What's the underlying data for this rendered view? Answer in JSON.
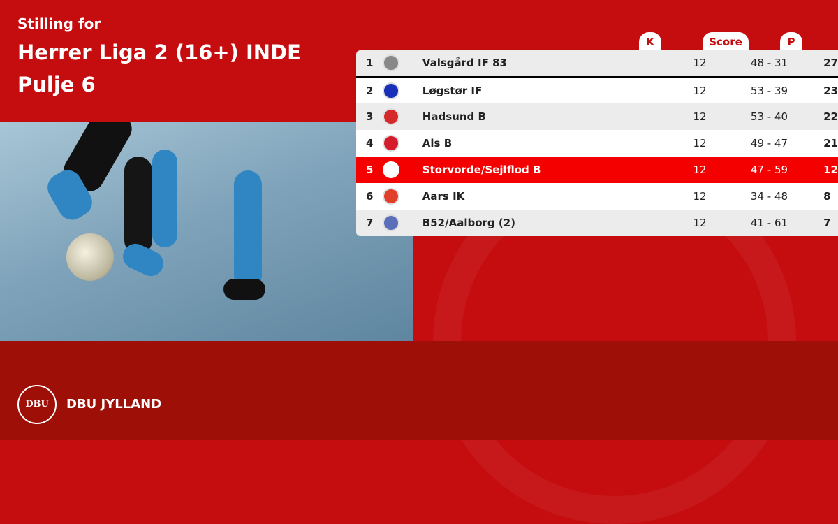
{
  "header": {
    "subtitle": "Stilling for",
    "league": "Herrer Liga 2 (16+) INDE",
    "group": "Pulje 6"
  },
  "table": {
    "columns": {
      "k": "K",
      "score": "Score",
      "p": "P"
    },
    "rows": [
      {
        "pos": "1",
        "team": "Valsgård IF 83",
        "k": "12",
        "score": "48 - 31",
        "p": "27",
        "logo_color": "#888888"
      },
      {
        "pos": "2",
        "team": "Løgstør IF",
        "k": "12",
        "score": "53 - 39",
        "p": "23",
        "logo_color": "#1a2fb8"
      },
      {
        "pos": "3",
        "team": "Hadsund B",
        "k": "12",
        "score": "53 - 40",
        "p": "22",
        "logo_color": "#d42a2a"
      },
      {
        "pos": "4",
        "team": "Als B",
        "k": "12",
        "score": "49 - 47",
        "p": "21",
        "logo_color": "#d41c2a"
      },
      {
        "pos": "5",
        "team": "Storvorde/Sejlflod B",
        "k": "12",
        "score": "47 - 59",
        "p": "12",
        "logo_color": "#ffffff",
        "highlighted": true
      },
      {
        "pos": "6",
        "team": "Aars IK",
        "k": "12",
        "score": "34 - 48",
        "p": "8",
        "logo_color": "#e0402a"
      },
      {
        "pos": "7",
        "team": "B52/Aalborg (2)",
        "k": "12",
        "score": "41 - 61",
        "p": "7",
        "logo_color": "#5a6fb8"
      }
    ]
  },
  "footer": {
    "brand": "DBU JYLLAND",
    "logo_text": "DBU"
  },
  "colors": {
    "primary": "#c50d0f",
    "footer": "#9e1007",
    "highlight": "#f50000"
  }
}
